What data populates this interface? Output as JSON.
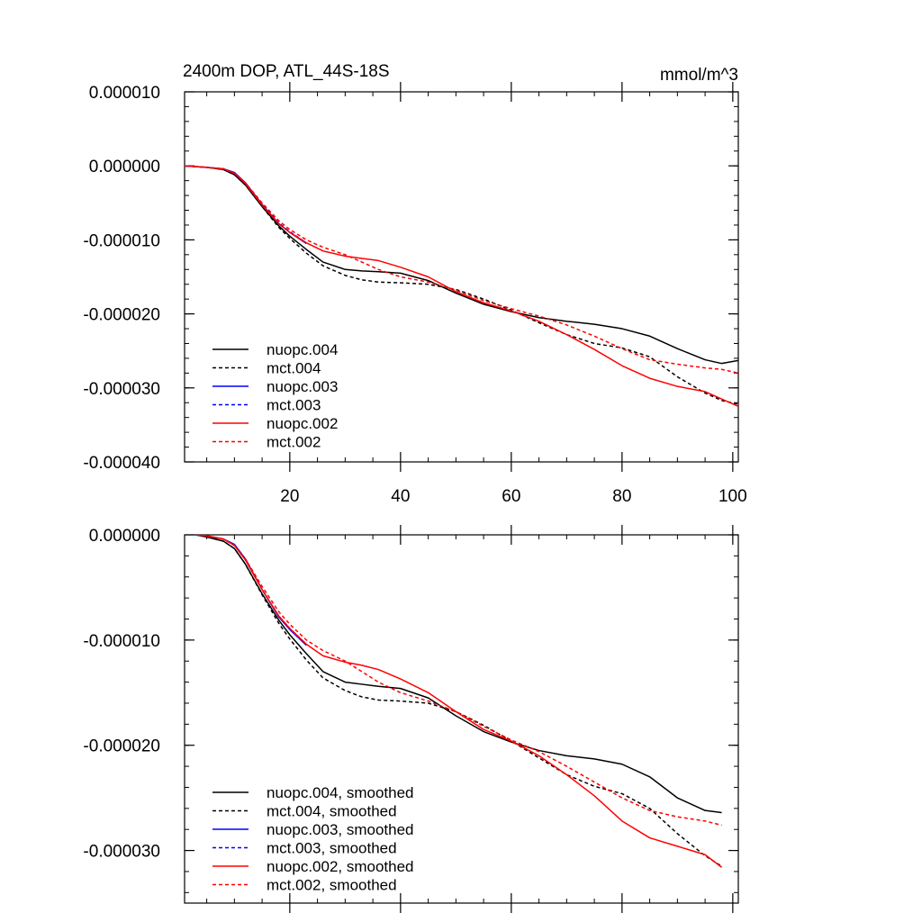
{
  "chart_data": [
    {
      "type": "line",
      "title": "2400m DOP, ATL_44S-18S",
      "units": "mmol/m^3",
      "xlabel": "",
      "ylabel": "",
      "xlim": [
        1,
        101
      ],
      "ylim": [
        -4e-05,
        1e-05
      ],
      "x_ticks": [
        20,
        40,
        60,
        80,
        100
      ],
      "x_tick_labels": [
        "20",
        "40",
        "60",
        "80",
        "100"
      ],
      "y_ticks": [
        1e-05,
        0.0,
        -1e-05,
        -2e-05,
        -3e-05,
        -4e-05
      ],
      "y_tick_labels": [
        "0.000010",
        "0.000000",
        "-0.000010",
        "-0.000020",
        "-0.000030",
        "-0.000040"
      ],
      "legend_position": "bottom-left",
      "series": [
        {
          "name": "nuopc.004",
          "color": "#000000",
          "dash": "solid",
          "x": [
            1,
            5,
            8,
            10,
            12,
            15,
            18,
            20,
            23,
            26,
            30,
            33,
            36,
            40,
            45,
            50,
            55,
            60,
            65,
            70,
            75,
            80,
            85,
            90,
            95,
            98,
            101
          ],
          "y": [
            0.0,
            -2e-07,
            -5e-07,
            -1.2e-06,
            -2.6e-06,
            -5.5e-06,
            -8.1e-06,
            -9.5e-06,
            -1.13e-05,
            -1.3e-05,
            -1.4e-05,
            -1.42e-05,
            -1.43e-05,
            -1.45e-05,
            -1.55e-05,
            -1.72e-05,
            -1.87e-05,
            -1.97e-05,
            -2.05e-05,
            -2.1e-05,
            -2.14e-05,
            -2.2e-05,
            -2.3e-05,
            -2.47e-05,
            -2.62e-05,
            -2.67e-05,
            -2.63e-05
          ]
        },
        {
          "name": "mct.004",
          "color": "#000000",
          "dash": "dashed",
          "x": [
            1,
            5,
            8,
            10,
            12,
            15,
            18,
            20,
            23,
            26,
            30,
            33,
            36,
            40,
            45,
            50,
            55,
            60,
            65,
            70,
            75,
            80,
            85,
            90,
            95,
            98,
            101
          ],
          "y": [
            0.0,
            -2e-07,
            -5e-07,
            -1.2e-06,
            -2.6e-06,
            -5.5e-06,
            -8.3e-06,
            -9.8e-06,
            -1.18e-05,
            -1.35e-05,
            -1.48e-05,
            -1.54e-05,
            -1.57e-05,
            -1.58e-05,
            -1.6e-05,
            -1.67e-05,
            -1.8e-05,
            -1.95e-05,
            -2.12e-05,
            -2.28e-05,
            -2.4e-05,
            -2.46e-05,
            -2.58e-05,
            -2.85e-05,
            -3.07e-05,
            -3.17e-05,
            -3.22e-05
          ]
        },
        {
          "name": "nuopc.003",
          "color": "#0000ff",
          "dash": "solid",
          "x": [
            1,
            5,
            8,
            10,
            12,
            15,
            18,
            20,
            23
          ],
          "y": [
            0.0,
            -2e-07,
            -4e-07,
            -9e-07,
            -2.3e-06,
            -5.2e-06,
            -7.8e-06,
            -9e-06,
            -1.05e-05
          ]
        },
        {
          "name": "mct.003",
          "color": "#0000ff",
          "dash": "dashed",
          "x": [
            1,
            5,
            8,
            10,
            12,
            15,
            18,
            20,
            23
          ],
          "y": [
            0.0,
            -2e-07,
            -4e-07,
            -1e-06,
            -2.4e-06,
            -5.2e-06,
            -7.7e-06,
            -8.9e-06,
            -1.04e-05
          ]
        },
        {
          "name": "nuopc.002",
          "color": "#ff0000",
          "dash": "solid",
          "x": [
            1,
            5,
            8,
            10,
            12,
            15,
            18,
            20,
            23,
            26,
            30,
            33,
            36,
            40,
            45,
            50,
            55,
            60,
            65,
            70,
            75,
            80,
            85,
            90,
            95,
            98,
            101
          ],
          "y": [
            0.0,
            -2e-07,
            -4e-07,
            -1e-06,
            -2.4e-06,
            -5.3e-06,
            -7.8e-06,
            -9e-06,
            -1.04e-05,
            -1.15e-05,
            -1.22e-05,
            -1.25e-05,
            -1.28e-05,
            -1.37e-05,
            -1.5e-05,
            -1.7e-05,
            -1.85e-05,
            -1.96e-05,
            -2.1e-05,
            -2.28e-05,
            -2.48e-05,
            -2.7e-05,
            -2.87e-05,
            -2.98e-05,
            -3.05e-05,
            -3.15e-05,
            -3.25e-05
          ]
        },
        {
          "name": "mct.002",
          "color": "#ff0000",
          "dash": "dashed",
          "x": [
            1,
            5,
            8,
            10,
            12,
            15,
            18,
            20,
            23,
            26,
            30,
            33,
            36,
            40,
            45,
            50,
            55,
            60,
            65,
            70,
            75,
            80,
            85,
            90,
            95,
            98,
            101
          ],
          "y": [
            0.0,
            -2e-07,
            -4e-07,
            -1e-06,
            -2.3e-06,
            -5e-06,
            -7.4e-06,
            -8.6e-06,
            -1e-05,
            -1.1e-05,
            -1.2e-05,
            -1.3e-05,
            -1.4e-05,
            -1.5e-05,
            -1.57e-05,
            -1.68e-05,
            -1.82e-05,
            -1.93e-05,
            -2.03e-05,
            -2.15e-05,
            -2.3e-05,
            -2.47e-05,
            -2.62e-05,
            -2.68e-05,
            -2.73e-05,
            -2.75e-05,
            -2.8e-05
          ]
        }
      ]
    },
    {
      "type": "line",
      "title": "",
      "xlabel": "",
      "ylabel": "",
      "xlim": [
        1,
        101
      ],
      "ylim": [
        -3.5e-05,
        0.0
      ],
      "x_ticks": [
        20,
        40,
        60,
        80,
        100
      ],
      "x_tick_labels": [],
      "y_ticks": [
        0.0,
        -1e-05,
        -2e-05,
        -3e-05
      ],
      "y_tick_labels": [
        "0.000000",
        "-0.000010",
        "-0.000020",
        "-0.000030"
      ],
      "legend_position": "bottom-left",
      "series": [
        {
          "name": "nuopc.004, smoothed",
          "color": "#000000",
          "dash": "solid",
          "x": [
            3,
            5,
            8,
            10,
            12,
            15,
            18,
            20,
            23,
            26,
            30,
            33,
            36,
            40,
            45,
            50,
            55,
            60,
            65,
            70,
            75,
            80,
            85,
            90,
            95,
            98
          ],
          "y": [
            0.0,
            -2e-07,
            -6e-07,
            -1.3e-06,
            -2.8e-06,
            -5.6e-06,
            -8.1e-06,
            -9.5e-06,
            -1.13e-05,
            -1.3e-05,
            -1.4e-05,
            -1.42e-05,
            -1.44e-05,
            -1.46e-05,
            -1.55e-05,
            -1.72e-05,
            -1.87e-05,
            -1.97e-05,
            -2.05e-05,
            -2.1e-05,
            -2.13e-05,
            -2.18e-05,
            -2.3e-05,
            -2.5e-05,
            -2.62e-05,
            -2.64e-05
          ]
        },
        {
          "name": "mct.004, smoothed",
          "color": "#000000",
          "dash": "dashed",
          "x": [
            3,
            5,
            8,
            10,
            12,
            15,
            18,
            20,
            23,
            26,
            30,
            33,
            36,
            40,
            45,
            50,
            55,
            60,
            65,
            70,
            75,
            80,
            85,
            90,
            95,
            98
          ],
          "y": [
            0.0,
            -2e-07,
            -6e-07,
            -1.3e-06,
            -2.8e-06,
            -5.7e-06,
            -8.4e-06,
            -9.9e-06,
            -1.19e-05,
            -1.36e-05,
            -1.48e-05,
            -1.54e-05,
            -1.57e-05,
            -1.58e-05,
            -1.6e-05,
            -1.68e-05,
            -1.81e-05,
            -1.96e-05,
            -2.12e-05,
            -2.28e-05,
            -2.39e-05,
            -2.46e-05,
            -2.6e-05,
            -2.84e-05,
            -3.05e-05,
            -3.15e-05
          ]
        },
        {
          "name": "nuopc.003, smoothed",
          "color": "#0000ff",
          "dash": "solid",
          "x": [
            3,
            5,
            8,
            10,
            12,
            15,
            18,
            20,
            23
          ],
          "y": [
            0.0,
            -1e-07,
            -4e-07,
            -9e-07,
            -2.3e-06,
            -5.2e-06,
            -7.8e-06,
            -9e-06,
            -1.05e-05
          ]
        },
        {
          "name": "mct.003, smoothed",
          "color": "#0000ff",
          "dash": "dashed",
          "x": [
            3,
            5,
            8,
            10,
            12,
            15,
            18,
            20,
            23
          ],
          "y": [
            0.0,
            -1e-07,
            -4e-07,
            -1e-06,
            -2.4e-06,
            -5.2e-06,
            -7.7e-06,
            -8.9e-06,
            -1.04e-05
          ]
        },
        {
          "name": "nuopc.002, smoothed",
          "color": "#ff0000",
          "dash": "solid",
          "x": [
            3,
            5,
            8,
            10,
            12,
            15,
            18,
            20,
            23,
            26,
            30,
            33,
            36,
            40,
            45,
            50,
            55,
            60,
            65,
            70,
            75,
            80,
            85,
            90,
            95,
            98
          ],
          "y": [
            0.0,
            -1e-07,
            -4e-07,
            -1e-06,
            -2.4e-06,
            -5.2e-06,
            -7.7e-06,
            -8.9e-06,
            -1.04e-05,
            -1.15e-05,
            -1.21e-05,
            -1.24e-05,
            -1.28e-05,
            -1.37e-05,
            -1.5e-05,
            -1.68e-05,
            -1.85e-05,
            -1.96e-05,
            -2.1e-05,
            -2.28e-05,
            -2.48e-05,
            -2.72e-05,
            -2.88e-05,
            -2.96e-05,
            -3.04e-05,
            -3.16e-05
          ]
        },
        {
          "name": "mct.002, smoothed",
          "color": "#ff0000",
          "dash": "dashed",
          "x": [
            3,
            5,
            8,
            10,
            12,
            15,
            18,
            20,
            23,
            26,
            30,
            33,
            36,
            40,
            45,
            50,
            55,
            60,
            65,
            70,
            75,
            80,
            85,
            90,
            95,
            98
          ],
          "y": [
            0.0,
            -1e-07,
            -4e-07,
            -1e-06,
            -2.3e-06,
            -4.9e-06,
            -7.3e-06,
            -8.5e-06,
            -1e-05,
            -1.1e-05,
            -1.2e-05,
            -1.3e-05,
            -1.4e-05,
            -1.5e-05,
            -1.58e-05,
            -1.68e-05,
            -1.82e-05,
            -1.95e-05,
            -2.06e-05,
            -2.2e-05,
            -2.35e-05,
            -2.5e-05,
            -2.62e-05,
            -2.68e-05,
            -2.72e-05,
            -2.76e-05
          ]
        }
      ]
    }
  ]
}
